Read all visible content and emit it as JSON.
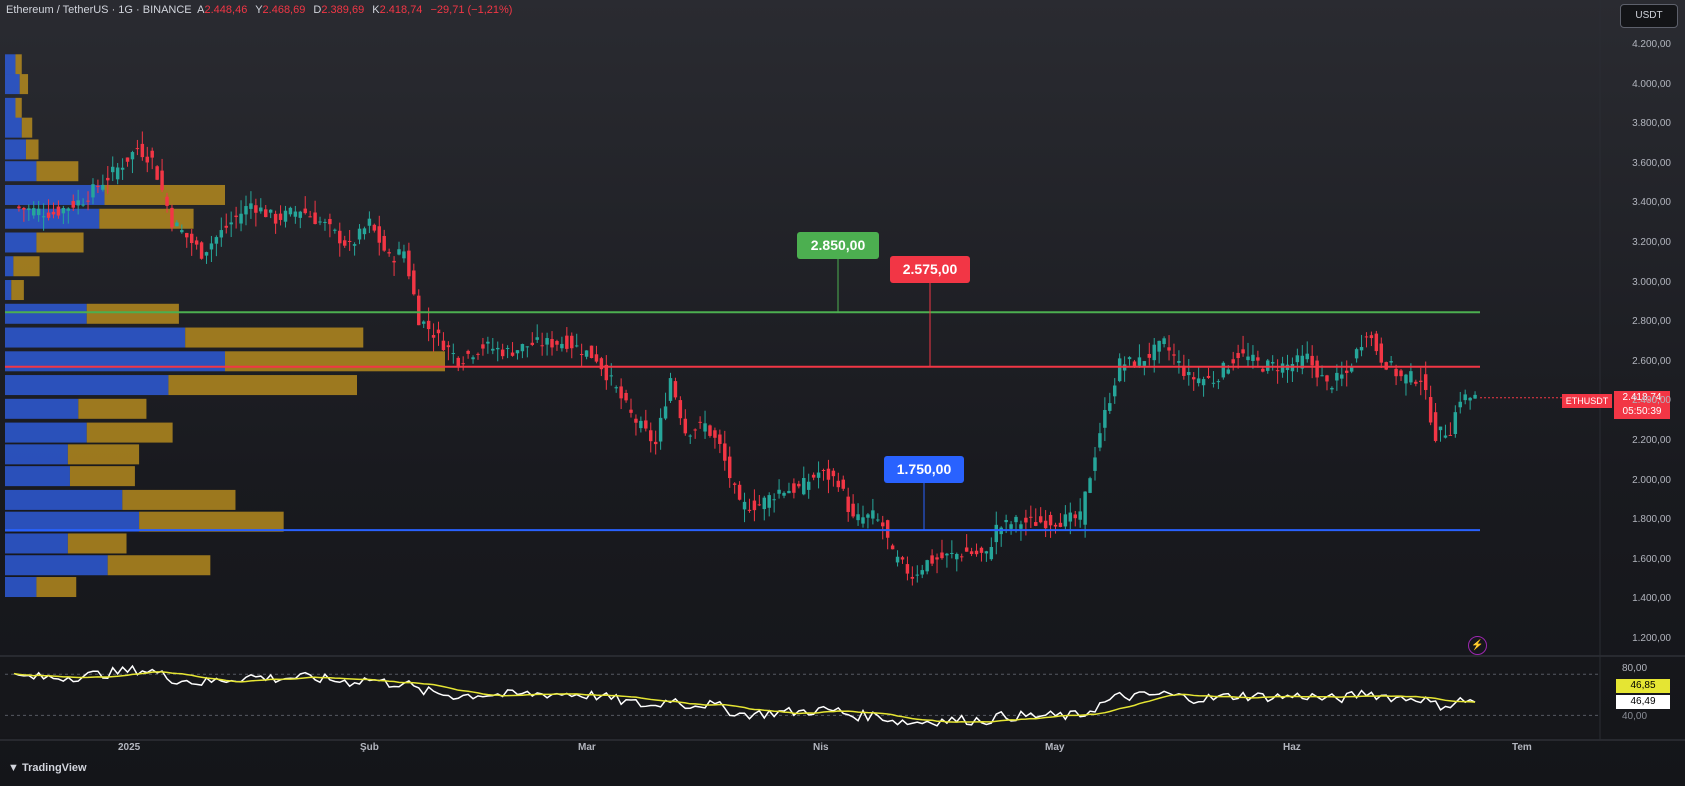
{
  "header": {
    "symbol": "Ethereum / TetherUS · 1G · BINANCE",
    "o_key": "A",
    "o_val": "2.448,46",
    "h_key": "Y",
    "h_val": "2.468,69",
    "l_key": "D",
    "l_val": "2.389,69",
    "c_key": "K",
    "c_val": "2.418,74",
    "chg": "−29,71 (−1,21%)"
  },
  "toolbar": {
    "currency": "USDT"
  },
  "levels": {
    "resistance_high": "2.850,00",
    "resistance_mid": "2.575,00",
    "support": "1.750,00"
  },
  "last_price": {
    "ticker": "ETHUSDT",
    "price": "2.418,74",
    "countdown": "05:50:39"
  },
  "oscillator": {
    "max": "80,00",
    "rsi": "46,85",
    "ma": "46,49",
    "min": "40,00"
  },
  "branding": {
    "logo": "TradingView"
  },
  "icons": {
    "flash": "flash-icon"
  },
  "colors": {
    "up": "#26a69a",
    "down": "#f23645",
    "green_line": "#4caf50",
    "red_line": "#f23645",
    "blue_line": "#2962ff",
    "vp_blue": "#2e5bd6",
    "vp_gold": "#b48a1f",
    "rsi": "#ffffff",
    "rsi_ma": "#e5e533"
  },
  "chart_data": {
    "type": "candlestick",
    "symbol": "ETHUSDT",
    "interval": "1G",
    "y_axis": {
      "min": 1200,
      "max": 4200,
      "ticks": [
        "1.200,00",
        "1.400,00",
        "1.600,00",
        "1.800,00",
        "2.000,00",
        "2.200,00",
        "2.400,00",
        "2.600,00",
        "2.800,00",
        "3.000,00",
        "3.200,00",
        "3.400,00",
        "3.600,00",
        "3.800,00",
        "4.000,00",
        "4.200,00"
      ]
    },
    "x_axis": {
      "labels": [
        "2025",
        "Şub",
        "Mar",
        "Nis",
        "May",
        "Haz",
        "Tem"
      ]
    },
    "horizontal_levels": [
      2850,
      2575,
      1750
    ],
    "close_path": [
      [
        0,
        3380
      ],
      [
        8,
        3350
      ],
      [
        14,
        3420
      ],
      [
        22,
        3600
      ],
      [
        25,
        3680
      ],
      [
        28,
        3620
      ],
      [
        32,
        3310
      ],
      [
        38,
        3150
      ],
      [
        43,
        3280
      ],
      [
        48,
        3400
      ],
      [
        53,
        3320
      ],
      [
        58,
        3370
      ],
      [
        63,
        3290
      ],
      [
        68,
        3180
      ],
      [
        72,
        3300
      ],
      [
        76,
        3120
      ],
      [
        79,
        3160
      ],
      [
        80,
        3050
      ],
      [
        82,
        2820
      ],
      [
        86,
        2720
      ],
      [
        90,
        2610
      ],
      [
        95,
        2680
      ],
      [
        100,
        2650
      ],
      [
        105,
        2690
      ],
      [
        112,
        2700
      ],
      [
        118,
        2620
      ],
      [
        121,
        2500
      ],
      [
        125,
        2330
      ],
      [
        130,
        2180
      ],
      [
        133,
        2520
      ],
      [
        136,
        2250
      ],
      [
        140,
        2280
      ],
      [
        143,
        2170
      ],
      [
        147,
        1870
      ],
      [
        151,
        1880
      ],
      [
        155,
        1950
      ],
      [
        159,
        1960
      ],
      [
        163,
        2040
      ],
      [
        167,
        2000
      ],
      [
        170,
        1800
      ],
      [
        174,
        1820
      ],
      [
        176,
        1770
      ],
      [
        178,
        1620
      ],
      [
        182,
        1520
      ],
      [
        185,
        1590
      ],
      [
        188,
        1610
      ],
      [
        193,
        1640
      ],
      [
        197,
        1620
      ],
      [
        199,
        1760
      ],
      [
        203,
        1790
      ],
      [
        207,
        1790
      ],
      [
        212,
        1800
      ],
      [
        216,
        1810
      ],
      [
        220,
        2250
      ],
      [
        224,
        2590
      ],
      [
        228,
        2600
      ],
      [
        233,
        2690
      ],
      [
        238,
        2520
      ],
      [
        243,
        2510
      ],
      [
        248,
        2640
      ],
      [
        253,
        2580
      ],
      [
        258,
        2580
      ],
      [
        262,
        2620
      ],
      [
        266,
        2480
      ],
      [
        270,
        2540
      ],
      [
        274,
        2760
      ],
      [
        277,
        2620
      ],
      [
        281,
        2520
      ],
      [
        285,
        2520
      ],
      [
        288,
        2230
      ],
      [
        291,
        2260
      ],
      [
        293,
        2420
      ],
      [
        296,
        2418
      ]
    ],
    "volume_profile": [
      {
        "price": 4100,
        "buy": 10,
        "sell": 6
      },
      {
        "price": 4000,
        "buy": 14,
        "sell": 8
      },
      {
        "price": 3880,
        "buy": 10,
        "sell": 6
      },
      {
        "price": 3780,
        "buy": 16,
        "sell": 10
      },
      {
        "price": 3670,
        "buy": 20,
        "sell": 12
      },
      {
        "price": 3560,
        "buy": 30,
        "sell": 40
      },
      {
        "price": 3440,
        "buy": 95,
        "sell": 115
      },
      {
        "price": 3320,
        "buy": 90,
        "sell": 90
      },
      {
        "price": 3200,
        "buy": 30,
        "sell": 45
      },
      {
        "price": 3080,
        "buy": 8,
        "sell": 25
      },
      {
        "price": 2960,
        "buy": 6,
        "sell": 12
      },
      {
        "price": 2840,
        "buy": 78,
        "sell": 88
      },
      {
        "price": 2720,
        "buy": 172,
        "sell": 170
      },
      {
        "price": 2600,
        "buy": 210,
        "sell": 210
      },
      {
        "price": 2480,
        "buy": 156,
        "sell": 180
      },
      {
        "price": 2360,
        "buy": 70,
        "sell": 65
      },
      {
        "price": 2240,
        "buy": 78,
        "sell": 82
      },
      {
        "price": 2130,
        "buy": 60,
        "sell": 68
      },
      {
        "price": 2020,
        "buy": 62,
        "sell": 62
      },
      {
        "price": 1900,
        "buy": 112,
        "sell": 108
      },
      {
        "price": 1790,
        "buy": 128,
        "sell": 138
      },
      {
        "price": 1680,
        "buy": 60,
        "sell": 56
      },
      {
        "price": 1570,
        "buy": 98,
        "sell": 98
      },
      {
        "price": 1460,
        "buy": 30,
        "sell": 38
      }
    ],
    "rsi_range": [
      40,
      80
    ]
  }
}
